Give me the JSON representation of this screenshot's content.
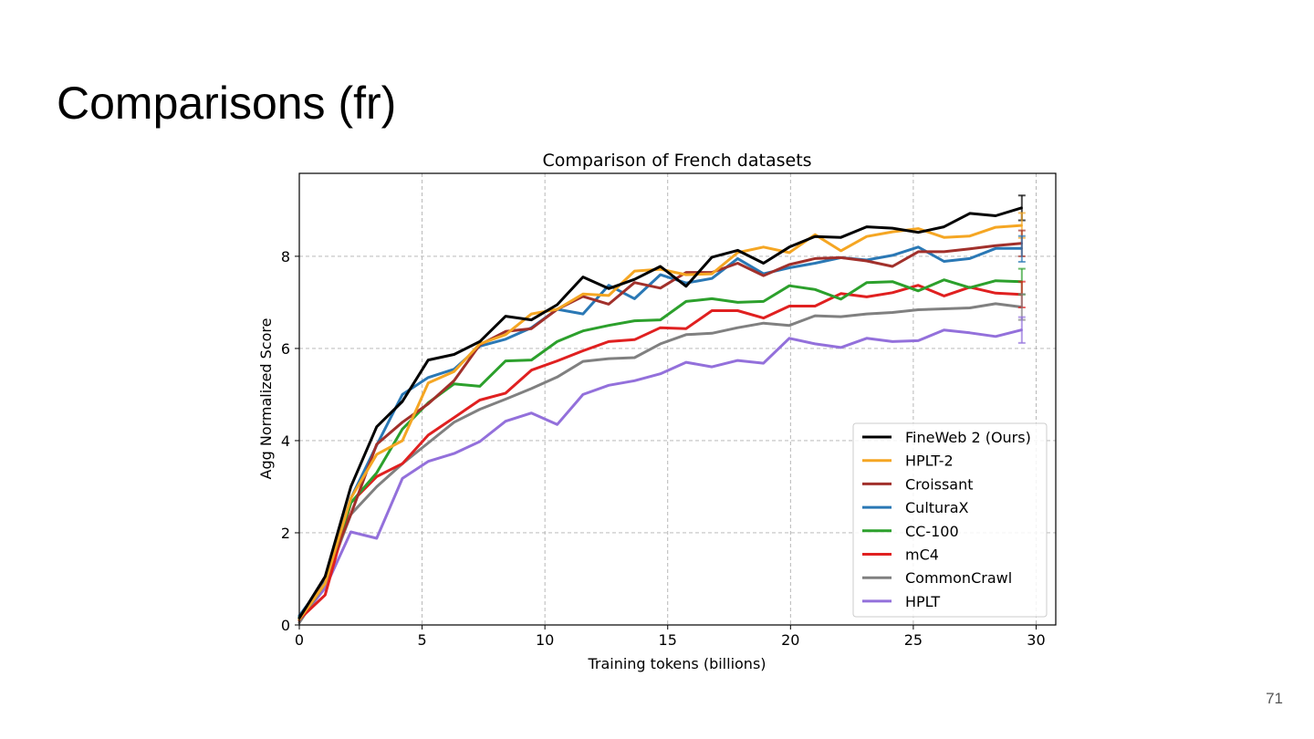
{
  "slide": {
    "title": "Comparisons (fr)",
    "page_number": "71"
  },
  "chart_data": {
    "type": "line",
    "title": "Comparison of French datasets",
    "xlabel": "Training tokens (billions)",
    "ylabel": "Agg Normalized Score",
    "xlim": [
      0,
      30.8
    ],
    "ylim": [
      0,
      9.8
    ],
    "xticks": [
      0,
      5,
      10,
      15,
      20,
      25,
      30
    ],
    "yticks": [
      0,
      2,
      4,
      6,
      8
    ],
    "grid": true,
    "legend_position": "lower-right",
    "x": [
      0,
      1.05,
      2.1,
      3.15,
      4.2,
      5.25,
      6.3,
      7.35,
      8.4,
      9.45,
      10.5,
      11.55,
      12.6,
      13.65,
      14.7,
      15.75,
      16.8,
      17.85,
      18.9,
      19.95,
      21.0,
      22.05,
      23.1,
      24.15,
      25.2,
      26.25,
      27.3,
      28.35,
      29.4
    ],
    "series": [
      {
        "name": "FineWeb 2 (Ours)",
        "color": "#000000",
        "values": [
          0.15,
          1.05,
          3.0,
          4.3,
          4.85,
          5.75,
          5.87,
          6.15,
          6.7,
          6.62,
          6.95,
          7.55,
          7.3,
          7.5,
          7.78,
          7.35,
          7.98,
          8.13,
          7.85,
          8.2,
          8.43,
          8.41,
          8.64,
          8.61,
          8.52,
          8.64,
          8.93,
          8.88,
          9.05
        ],
        "error": [
          8.78,
          9.32
        ]
      },
      {
        "name": "HPLT-2",
        "color": "#f5a623",
        "values": [
          0.12,
          0.9,
          2.75,
          3.7,
          4.0,
          5.25,
          5.5,
          6.1,
          6.3,
          6.75,
          6.85,
          7.18,
          7.15,
          7.68,
          7.72,
          7.6,
          7.62,
          8.08,
          8.2,
          8.08,
          8.47,
          8.12,
          8.43,
          8.53,
          8.6,
          8.41,
          8.44,
          8.63,
          8.67
        ],
        "error": [
          8.4,
          8.94
        ]
      },
      {
        "name": "Croissant",
        "color": "#a1302b",
        "values": [
          0.1,
          1.05,
          2.4,
          3.92,
          4.4,
          4.8,
          5.3,
          6.08,
          6.37,
          6.43,
          6.85,
          7.13,
          6.96,
          7.43,
          7.31,
          7.65,
          7.65,
          7.85,
          7.58,
          7.82,
          7.95,
          7.97,
          7.9,
          7.78,
          8.1,
          8.1,
          8.16,
          8.23,
          8.28
        ],
        "error": [
          8.0,
          8.56
        ]
      },
      {
        "name": "CulturaX",
        "color": "#2a78b5",
        "values": [
          0.2,
          0.95,
          2.75,
          3.9,
          5.0,
          5.37,
          5.55,
          6.05,
          6.2,
          6.45,
          6.85,
          6.75,
          7.37,
          7.08,
          7.6,
          7.42,
          7.52,
          7.95,
          7.62,
          7.75,
          7.85,
          7.97,
          7.92,
          8.02,
          8.2,
          7.89,
          7.95,
          8.17,
          8.17
        ],
        "error": [
          7.88,
          8.44
        ]
      },
      {
        "name": "CC-100",
        "color": "#2ca02c",
        "values": [
          0.18,
          0.95,
          2.65,
          3.3,
          4.25,
          4.82,
          5.23,
          5.18,
          5.73,
          5.75,
          6.15,
          6.38,
          6.5,
          6.6,
          6.62,
          7.02,
          7.08,
          7.0,
          7.02,
          7.36,
          7.28,
          7.07,
          7.43,
          7.45,
          7.25,
          7.49,
          7.32,
          7.47,
          7.45
        ],
        "error": [
          7.17,
          7.73
        ]
      },
      {
        "name": "mC4",
        "color": "#e02020",
        "values": [
          0.12,
          0.65,
          2.65,
          3.22,
          3.5,
          4.12,
          4.5,
          4.88,
          5.03,
          5.53,
          5.73,
          5.95,
          6.15,
          6.19,
          6.45,
          6.43,
          6.82,
          6.82,
          6.66,
          6.92,
          6.92,
          7.19,
          7.12,
          7.21,
          7.37,
          7.14,
          7.33,
          7.2,
          7.17
        ],
        "error": [
          6.89,
          7.45
        ]
      },
      {
        "name": "CommonCrawl",
        "color": "#808080",
        "values": [
          0.05,
          0.9,
          2.4,
          3.0,
          3.5,
          3.95,
          4.4,
          4.68,
          4.9,
          5.13,
          5.38,
          5.72,
          5.78,
          5.8,
          6.1,
          6.3,
          6.33,
          6.45,
          6.55,
          6.5,
          6.71,
          6.69,
          6.75,
          6.78,
          6.84,
          6.86,
          6.88,
          6.97,
          6.9
        ],
        "error": [
          6.62,
          7.18
        ]
      },
      {
        "name": "HPLT",
        "color": "#9370db",
        "values": [
          0.1,
          0.8,
          2.02,
          1.88,
          3.18,
          3.55,
          3.72,
          3.98,
          4.42,
          4.6,
          4.35,
          5.0,
          5.2,
          5.3,
          5.45,
          5.7,
          5.6,
          5.74,
          5.68,
          6.22,
          6.1,
          6.02,
          6.22,
          6.15,
          6.17,
          6.4,
          6.34,
          6.26,
          6.4
        ],
        "error": [
          6.12,
          6.68
        ]
      }
    ]
  }
}
